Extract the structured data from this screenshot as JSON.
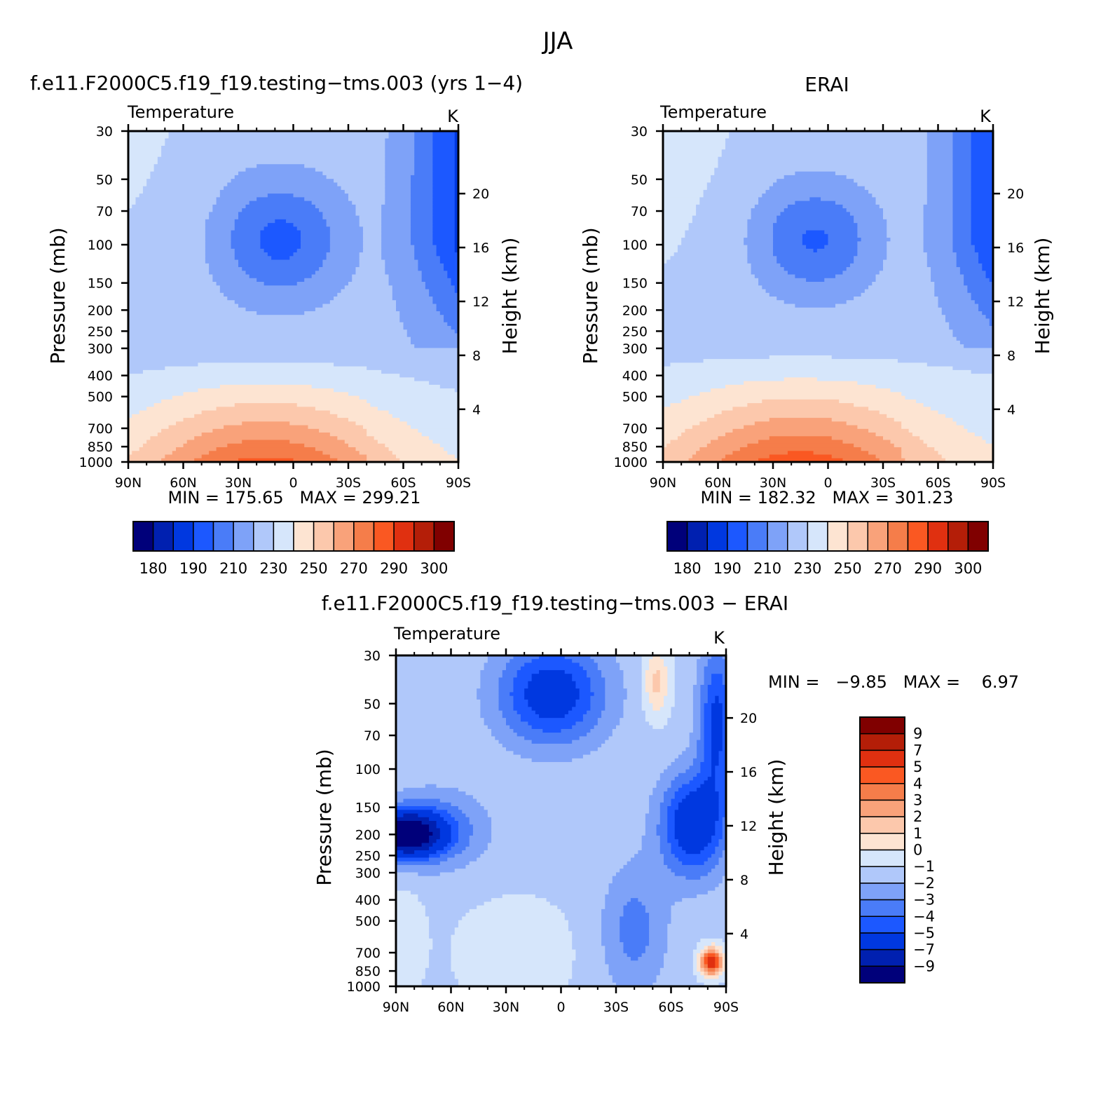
{
  "figure": {
    "title": "JJA"
  },
  "panels": [
    {
      "id": "model",
      "title": "f.e11.F2000C5.f19_f19.testing−tms.003 (yrs 1−4)",
      "left_label": "Temperature",
      "right_label": "K",
      "ylabel": "Pressure (mb)",
      "y2label": "Height (km)",
      "stats": "MIN = 175.65   MAX = 299.21"
    },
    {
      "id": "obs",
      "title": "ERAI",
      "left_label": "Temperature",
      "right_label": "K",
      "ylabel": "Pressure (mb)",
      "y2label": "Height (km)",
      "stats": "MIN = 182.32   MAX = 301.23"
    },
    {
      "id": "diff",
      "title": "f.e11.F2000C5.f19_f19.testing−tms.003 − ERAI",
      "left_label": "Temperature",
      "right_label": "K",
      "ylabel": "Pressure (mb)",
      "y2label": "Height (km)",
      "stats": "MIN =   −9.85   MAX =    6.97"
    }
  ],
  "chart_data": [
    {
      "type": "heatmap",
      "subtype": "filled contour",
      "panel": "model",
      "title": "f.e11.F2000C5.f19_f19.testing−tms.003 (yrs 1−4)",
      "x_ticks": [
        "90N",
        "60N",
        "30N",
        "0",
        "30S",
        "60S",
        "90S"
      ],
      "x_range": [
        90,
        -90
      ],
      "y_ticks": [
        "30",
        "50",
        "70",
        "100",
        "150",
        "200",
        "250",
        "300",
        "400",
        "500",
        "700",
        "850",
        "1000"
      ],
      "y_range_mb": [
        1000,
        30
      ],
      "y_scale": "log",
      "y2_ticks": [
        "4",
        "8",
        "12",
        "16",
        "20"
      ],
      "contour_levels": [
        180,
        185,
        190,
        200,
        210,
        220,
        230,
        240,
        250,
        260,
        270,
        280,
        290,
        295,
        300
      ],
      "colorbar_labels": [
        "180",
        "190",
        "210",
        "230",
        "250",
        "270",
        "290",
        "300"
      ],
      "min": 175.65,
      "max": 299.21
    },
    {
      "type": "heatmap",
      "subtype": "filled contour",
      "panel": "obs",
      "title": "ERAI",
      "x_ticks": [
        "90N",
        "60N",
        "30N",
        "0",
        "30S",
        "60S",
        "90S"
      ],
      "x_range": [
        90,
        -90
      ],
      "y_ticks": [
        "30",
        "50",
        "70",
        "100",
        "150",
        "200",
        "250",
        "300",
        "400",
        "500",
        "700",
        "850",
        "1000"
      ],
      "y_range_mb": [
        1000,
        30
      ],
      "y_scale": "log",
      "y2_ticks": [
        "4",
        "8",
        "12",
        "16",
        "20"
      ],
      "contour_levels": [
        180,
        185,
        190,
        200,
        210,
        220,
        230,
        240,
        250,
        260,
        270,
        280,
        290,
        295,
        300
      ],
      "colorbar_labels": [
        "180",
        "190",
        "210",
        "230",
        "250",
        "270",
        "290",
        "300"
      ],
      "min": 182.32,
      "max": 301.23
    },
    {
      "type": "heatmap",
      "subtype": "filled contour difference",
      "panel": "diff",
      "title": "f.e11.F2000C5.f19_f19.testing−tms.003 − ERAI",
      "x_ticks": [
        "90N",
        "60N",
        "30N",
        "0",
        "30S",
        "60S",
        "90S"
      ],
      "x_range": [
        90,
        -90
      ],
      "y_ticks": [
        "30",
        "50",
        "70",
        "100",
        "150",
        "200",
        "250",
        "300",
        "400",
        "500",
        "700",
        "850",
        "1000"
      ],
      "y_range_mb": [
        1000,
        30
      ],
      "y_scale": "log",
      "y2_ticks": [
        "4",
        "8",
        "12",
        "16",
        "20"
      ],
      "contour_levels": [
        -9,
        -7,
        -5,
        -4,
        -3,
        -2,
        -1,
        0,
        1,
        2,
        3,
        4,
        5,
        7,
        9
      ],
      "colorbar_labels": [
        "9",
        "7",
        "5",
        "4",
        "3",
        "2",
        "1",
        "0",
        "−1",
        "−2",
        "−3",
        "−4",
        "−5",
        "−7",
        "−9"
      ],
      "min": -9.85,
      "max": 6.97
    }
  ],
  "palettes": {
    "abs": [
      "#00007a",
      "#0020b0",
      "#0038e0",
      "#1c58ff",
      "#4a7cf8",
      "#7ea2f8",
      "#b0c8fa",
      "#d6e6fb",
      "#fde4d2",
      "#fcc8ac",
      "#f9a27a",
      "#f57d4a",
      "#fa5822",
      "#e03010",
      "#b41e08",
      "#800000"
    ],
    "diff": [
      "#00007a",
      "#0020b0",
      "#0038e0",
      "#1c58ff",
      "#4a7cf8",
      "#7ea2f8",
      "#b0c8fa",
      "#d6e6fb",
      "#fde4d2",
      "#fcc8ac",
      "#f9a27a",
      "#f57d4a",
      "#fa5822",
      "#e03010",
      "#b41e08",
      "#800000"
    ]
  }
}
